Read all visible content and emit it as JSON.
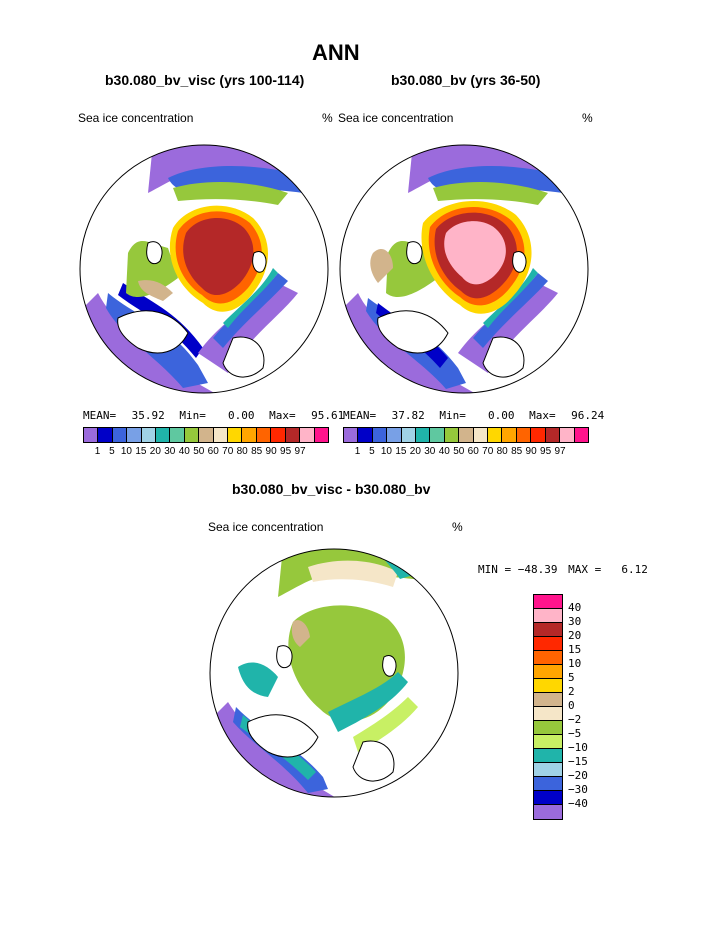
{
  "figure": {
    "title": "ANN",
    "left_panel_title": "b30.080_bv_visc (yrs 100-114)",
    "right_panel_title": "b30.080_bv (yrs 36-50)",
    "diff_title": "b30.080_bv_visc - b30.080_bv"
  },
  "left_panel": {
    "variable": "Sea ice concentration",
    "units": "%",
    "mean_label": "MEAN=",
    "mean": "35.92",
    "min_label": "Min=",
    "min": "0.00",
    "max_label": "Max=",
    "max": "95.61"
  },
  "right_panel": {
    "variable": "Sea ice concentration",
    "units": "%",
    "mean_label": "MEAN=",
    "mean": "37.82",
    "min_label": "Min=",
    "min": "0.00",
    "max_label": "Max=",
    "max": "96.24"
  },
  "diff_panel": {
    "variable": "Sea ice concentration",
    "units": "%",
    "min_label": "MIN =",
    "min": "−48.39",
    "max_label": "MAX =",
    "max": "6.12"
  },
  "abs_colorbar": {
    "colors": [
      "#9b6bdc",
      "#0000c8",
      "#3c64dc",
      "#78a0e6",
      "#a0d2e6",
      "#20b4aa",
      "#5fc8a0",
      "#96c83c",
      "#d2b48c",
      "#f5e6c8",
      "#ffd700",
      "#ffa500",
      "#ff6400",
      "#ff2800",
      "#b42828",
      "#ffb4c8",
      "#ff148c"
    ],
    "tick_labels": [
      "1",
      "5",
      "10",
      "15",
      "20",
      "30",
      "40",
      "50",
      "60",
      "70",
      "80",
      "85",
      "90",
      "95",
      "97"
    ]
  },
  "diff_colorbar": {
    "colors": [
      "#ff148c",
      "#ffb4c8",
      "#b42828",
      "#ff2800",
      "#ff6400",
      "#ffa500",
      "#ffd700",
      "#d2b48c",
      "#f5e6c8",
      "#96c83c",
      "#c8f064",
      "#20b4aa",
      "#a0d2e6",
      "#3c64dc",
      "#0000c8",
      "#9b6bdc"
    ],
    "tick_labels": [
      "40",
      "30",
      "20",
      "15",
      "10",
      "5",
      "2",
      "0",
      "−2",
      "−5",
      "−10",
      "−15",
      "−20",
      "−30",
      "−40"
    ]
  },
  "map_icons": {
    "left": "arctic-map",
    "right": "arctic-map",
    "diff": "arctic-map"
  }
}
